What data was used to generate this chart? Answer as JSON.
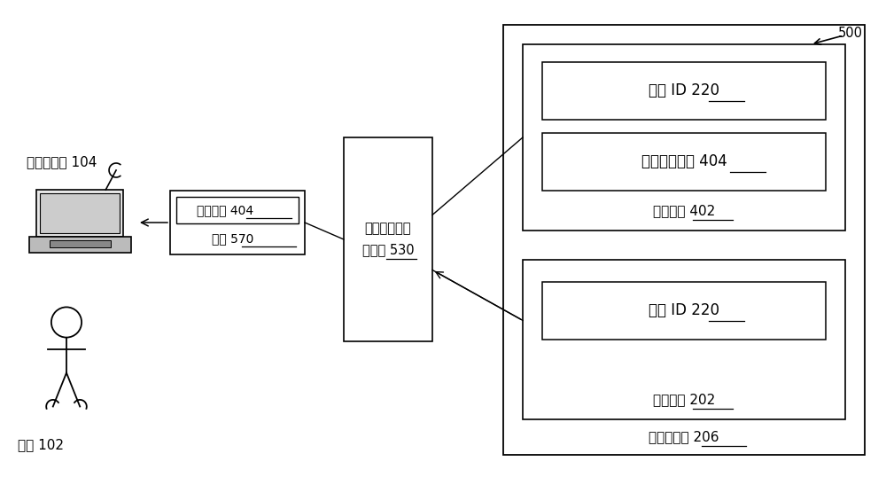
{
  "bg_color": "#ffffff",
  "label_500": "500",
  "label_client": "客户端设备 104",
  "label_user": "用户 102",
  "response_validator_label1": "响应容器来源",
  "response_validator_label2": "验证器 530",
  "outer_box_label": "请求控制器 206",
  "response_container_label": "响应容器 402",
  "request_container_label": "请求容器 202",
  "req_id_220_top": "请求 ID 220",
  "original_user_data_404": "原始用户数据 404",
  "req_id_220_bottom": "请求 ID 220",
  "response_box_line1": "用户数据 404",
  "response_box_line2": "响应 570",
  "font_main": "SimSun"
}
